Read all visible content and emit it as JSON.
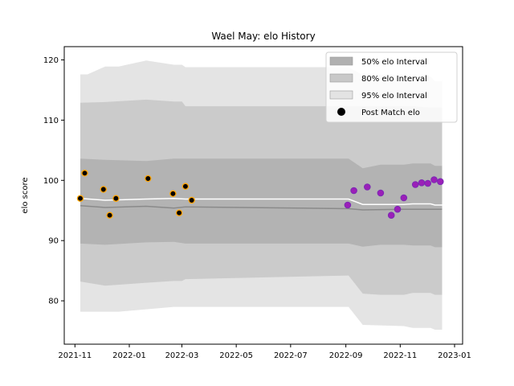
{
  "chart_data": {
    "type": "area",
    "title": "Wael May: elo History",
    "xlabel": "",
    "ylabel": "elo score",
    "xlim": [
      "2021-10-20",
      "2023-01-10"
    ],
    "ylim": [
      72.8,
      122.2
    ],
    "x_ticks": [
      "2021-11",
      "2022-01",
      "2022-03",
      "2022-05",
      "2022-07",
      "2022-09",
      "2022-11",
      "2023-01"
    ],
    "y_ticks": [
      80,
      90,
      100,
      110,
      120
    ],
    "grid": false,
    "legend_position": "top-right",
    "legend": [
      {
        "label": "50% elo Interval",
        "color": "#b0b0b0"
      },
      {
        "label": "80% elo Interval",
        "color": "#c8c8c8"
      },
      {
        "label": "95% elo Interval",
        "color": "#e3e3e3"
      },
      {
        "label": "Post Match elo",
        "color": "#000000"
      }
    ],
    "colors": {
      "band50": "#b3b3b3",
      "band80": "#cbcbcb",
      "band95": "#e4e4e4",
      "mean_line": "#ffffff",
      "lower_line": "#8a8a8a",
      "early_point_fill": "#000000",
      "early_point_edge": "#ffa500",
      "late_point_fill": "#9b1fb8",
      "late_point_edge": "#7a2ab3"
    },
    "series": [
      {
        "name": "95% elo Interval",
        "x": [
          "2021-11-07",
          "2021-11-15",
          "2021-12-05",
          "2021-12-20",
          "2022-01-20",
          "2022-02-20",
          "2022-03-01",
          "2022-03-05",
          "2022-09-04",
          "2022-09-20",
          "2022-11-05",
          "2022-11-15",
          "2022-12-05",
          "2022-12-10",
          "2022-12-18"
        ],
        "upper": [
          117.6,
          117.6,
          118.9,
          118.9,
          119.9,
          119.2,
          119.2,
          118.8,
          118.8,
          117.5,
          117.5,
          117.2,
          117.2,
          116.5,
          116.5
        ],
        "lower": [
          78.2,
          78.2,
          78.2,
          78.2,
          78.6,
          79.0,
          79.0,
          79.0,
          79.0,
          76.0,
          75.8,
          75.5,
          75.5,
          75.2,
          75.2
        ]
      },
      {
        "name": "80% elo Interval",
        "x": [
          "2021-11-07",
          "2021-12-05",
          "2022-01-20",
          "2022-02-20",
          "2022-03-01",
          "2022-03-05",
          "2022-09-04",
          "2022-09-20",
          "2022-10-10",
          "2022-11-05",
          "2022-11-15",
          "2022-12-05",
          "2022-12-10",
          "2022-12-18"
        ],
        "upper": [
          112.9,
          113.0,
          113.4,
          113.1,
          113.1,
          112.3,
          112.3,
          112.3,
          112.3,
          112.3,
          112.3,
          112.1,
          112.1,
          112.1
        ],
        "lower": [
          83.2,
          82.5,
          83.0,
          83.3,
          83.3,
          83.6,
          84.2,
          81.2,
          81.0,
          81.0,
          81.3,
          81.3,
          81.0,
          81.0
        ]
      },
      {
        "name": "50% elo Interval",
        "x": [
          "2021-11-07",
          "2021-12-05",
          "2022-01-20",
          "2022-02-20",
          "2022-03-05",
          "2022-09-04",
          "2022-09-20",
          "2022-10-10",
          "2022-11-05",
          "2022-11-15",
          "2022-12-05",
          "2022-12-10",
          "2022-12-18"
        ],
        "upper": [
          103.6,
          103.4,
          103.2,
          103.6,
          103.6,
          103.6,
          102.0,
          102.6,
          102.6,
          102.8,
          102.8,
          102.4,
          102.4
        ],
        "lower": [
          89.5,
          89.3,
          89.7,
          89.8,
          89.5,
          89.5,
          89.0,
          89.3,
          89.3,
          89.2,
          89.2,
          88.9,
          88.9
        ]
      },
      {
        "name": "mean",
        "x": [
          "2021-11-07",
          "2021-12-05",
          "2022-01-20",
          "2022-02-20",
          "2022-03-05",
          "2022-09-04",
          "2022-09-20",
          "2022-11-05",
          "2022-11-15",
          "2022-12-05",
          "2022-12-10",
          "2022-12-18"
        ],
        "y": [
          97.0,
          96.7,
          96.9,
          97.0,
          96.9,
          96.9,
          96.0,
          96.0,
          96.1,
          96.1,
          95.9,
          95.9
        ]
      },
      {
        "name": "lower-line",
        "x": [
          "2021-11-07",
          "2021-12-05",
          "2022-01-20",
          "2022-02-20",
          "2022-03-05",
          "2022-09-04",
          "2022-09-20",
          "2022-11-05",
          "2022-12-18"
        ],
        "y": [
          95.8,
          95.5,
          95.7,
          95.4,
          95.6,
          95.3,
          95.1,
          95.2,
          95.2
        ]
      }
    ],
    "points_early": {
      "x": [
        "2021-11-07",
        "2021-11-12",
        "2021-12-03",
        "2021-12-10",
        "2021-12-17",
        "2022-01-22",
        "2022-02-19",
        "2022-02-26",
        "2022-03-05",
        "2022-03-12"
      ],
      "y": [
        97.0,
        101.2,
        98.5,
        94.2,
        97.0,
        100.3,
        97.8,
        94.6,
        99.0,
        96.7
      ]
    },
    "points_late": {
      "x": [
        "2022-09-03",
        "2022-09-10",
        "2022-09-25",
        "2022-10-10",
        "2022-10-22",
        "2022-10-29",
        "2022-11-05",
        "2022-11-18",
        "2022-11-25",
        "2022-12-02",
        "2022-12-09",
        "2022-12-16"
      ],
      "y": [
        95.9,
        98.3,
        98.9,
        97.9,
        94.2,
        95.2,
        97.1,
        99.3,
        99.6,
        99.5,
        100.1,
        99.8
      ]
    }
  }
}
